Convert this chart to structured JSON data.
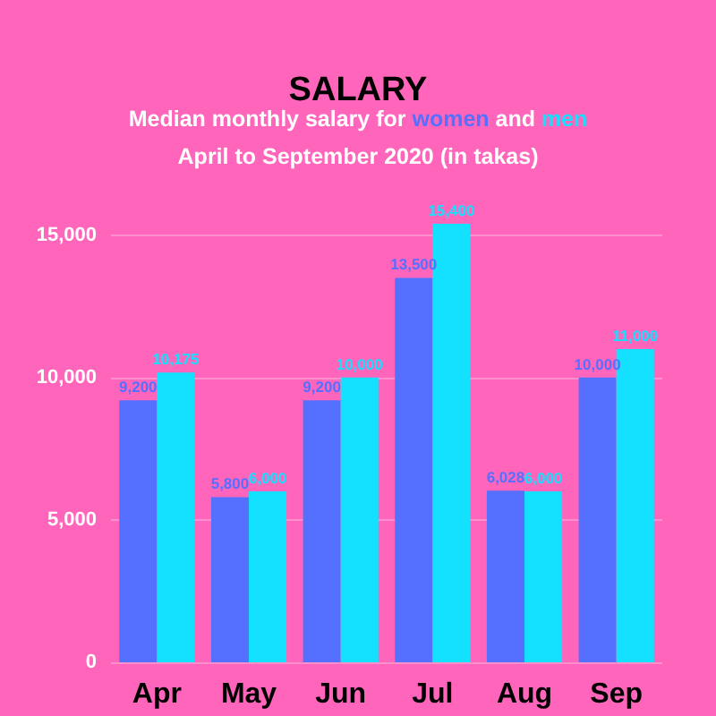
{
  "chart_data": {
    "type": "bar",
    "title": "SALARY",
    "subtitle": "April to September 2020 (in takas)",
    "annotations": [
      "Median monthly salary for",
      "and"
    ],
    "categories": [
      "Apr",
      "May",
      "Jun",
      "Jul",
      "Aug",
      "Sep"
    ],
    "series": [
      {
        "name": "women",
        "color": "#5570ff",
        "values": [
          9200,
          5800,
          9200,
          13500,
          6028,
          10000
        ],
        "value_labels": [
          "9,200",
          "5,800",
          "9,200",
          "13,500",
          "6,028",
          "10,000"
        ]
      },
      {
        "name": "men",
        "color": "#14e0ff",
        "values": [
          10175,
          6000,
          10000,
          15400,
          6000,
          11000
        ],
        "value_labels": [
          "10,175",
          "6,000",
          "10,000",
          "15,400",
          "6,000",
          "11,000"
        ]
      }
    ],
    "ylim": [
      0,
      15400
    ],
    "yticks": [
      {
        "value": 0,
        "label": "0"
      },
      {
        "value": 5000,
        "label": "5,000"
      },
      {
        "value": 10000,
        "label": "10,000"
      },
      {
        "value": 15000,
        "label": "15,000"
      }
    ],
    "grid": "y",
    "legend": false
  }
}
